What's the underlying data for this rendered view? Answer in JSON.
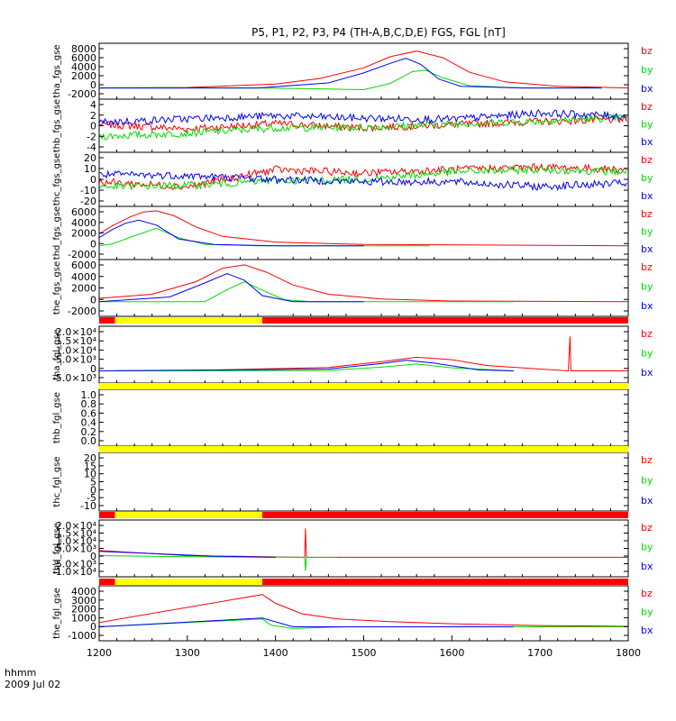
{
  "title": "P5, P1, P2, P3, P4 (TH-A,B,C,D,E) FGS, FGL [nT]",
  "x_axis": {
    "label_line1": "hhmm",
    "label_line2": "2009 Jul 02",
    "ticks": [
      "1200",
      "1300",
      "1400",
      "1500",
      "1600",
      "1700",
      "1800"
    ]
  },
  "colors": {
    "bz": "#ff0000",
    "by": "#00dd00",
    "bx": "#0000ff",
    "quality_good": "#ffff00",
    "quality_bad": "#ff0000"
  },
  "chart_data": [
    {
      "type": "line",
      "id": "tha_fgs_gse",
      "ylabel": "tha_fgs_gse",
      "yticks": [
        "8000",
        "6000",
        "4000",
        "2000",
        "0",
        "-2000"
      ],
      "ylim": [
        -2000,
        8000
      ],
      "legend": [
        "bz",
        "by",
        "bx"
      ],
      "series": [
        {
          "name": "bz",
          "x": [
            1200,
            1300,
            1400,
            1450,
            1500,
            1530,
            1560,
            1590,
            1620,
            1660,
            1720,
            1800
          ],
          "values": [
            0,
            80,
            700,
            1700,
            3600,
            5600,
            6600,
            5400,
            2800,
            1100,
            300,
            0
          ]
        },
        {
          "name": "by",
          "x": [
            1200,
            1380,
            1460,
            1500,
            1530,
            1555,
            1570,
            1590,
            1620,
            1680,
            1770
          ],
          "values": [
            0,
            0,
            -200,
            -300,
            800,
            2900,
            3200,
            1800,
            400,
            0,
            0
          ]
        },
        {
          "name": "bx",
          "x": [
            1200,
            1380,
            1460,
            1500,
            1530,
            1548,
            1565,
            1585,
            1610,
            1680,
            1770
          ],
          "values": [
            0,
            0,
            900,
            2700,
            4400,
            5300,
            4200,
            1600,
            300,
            0,
            0
          ]
        }
      ]
    },
    {
      "type": "line",
      "id": "thb_fgs_gse",
      "ylabel": "thb_fgs_gse",
      "yticks": [
        "4",
        "2",
        "0",
        "-2",
        "-4"
      ],
      "ylim": [
        -5,
        5
      ],
      "legend": [
        "bz",
        "by",
        "bx"
      ],
      "series": [
        {
          "name": "bz",
          "x": [
            1200,
            1300,
            1400,
            1500,
            1600,
            1700,
            1800
          ],
          "values": [
            0.3,
            -0.6,
            0.4,
            -0.4,
            0.2,
            0.8,
            1.2
          ]
        },
        {
          "name": "by",
          "x": [
            1200,
            1300,
            1400,
            1500,
            1600,
            1700,
            1800
          ],
          "values": [
            -2.0,
            -1.4,
            -0.4,
            -0.3,
            0.3,
            0.9,
            1.6
          ]
        },
        {
          "name": "bx",
          "x": [
            1200,
            1300,
            1400,
            1500,
            1600,
            1700,
            1800
          ],
          "values": [
            0.6,
            1.3,
            1.9,
            1.4,
            1.2,
            2.4,
            1.8
          ]
        }
      ]
    },
    {
      "type": "line",
      "id": "thc_fgs_gse",
      "ylabel": "thc_fgs_gse",
      "yticks": [
        "20",
        "10",
        "0",
        "-10",
        "-20"
      ],
      "ylim": [
        -22,
        22
      ],
      "legend": [
        "bz",
        "by",
        "bx"
      ],
      "series": [
        {
          "name": "bz",
          "x": [
            1200,
            1300,
            1400,
            1500,
            1600,
            1700,
            1800
          ],
          "values": [
            -2,
            -6,
            8,
            5,
            8,
            10,
            8
          ]
        },
        {
          "name": "by",
          "x": [
            1200,
            1300,
            1400,
            1500,
            1600,
            1700,
            1800
          ],
          "values": [
            -6,
            -5,
            -1,
            0,
            6,
            8,
            6
          ]
        },
        {
          "name": "bx",
          "x": [
            1200,
            1300,
            1400,
            1500,
            1600,
            1700,
            1800
          ],
          "values": [
            4,
            3,
            0,
            -2,
            -2,
            -6,
            -3
          ]
        }
      ]
    },
    {
      "type": "line",
      "id": "thd_fgs_gse",
      "ylabel": "thd_fgs_gse",
      "yticks": [
        "6000",
        "4000",
        "2000",
        "0",
        "-2000"
      ],
      "ylim": [
        -2200,
        6300
      ],
      "legend": [
        "bz",
        "by",
        "bx"
      ],
      "series": [
        {
          "name": "bz",
          "x": [
            1200,
            1215,
            1235,
            1250,
            1265,
            1285,
            1310,
            1340,
            1400,
            1500,
            1800
          ],
          "values": [
            1900,
            3200,
            4600,
            5400,
            5600,
            4800,
            3000,
            1500,
            600,
            200,
            0
          ]
        },
        {
          "name": "by",
          "x": [
            1200,
            1215,
            1240,
            1265,
            1290,
            1320,
            1380,
            1575
          ],
          "values": [
            0,
            300,
            1600,
            2800,
            1300,
            200,
            0,
            0
          ]
        },
        {
          "name": "bx",
          "x": [
            1200,
            1215,
            1230,
            1245,
            1265,
            1290,
            1330,
            1400,
            1500
          ],
          "values": [
            1300,
            2600,
            3600,
            4100,
            3300,
            1100,
            200,
            0,
            0
          ]
        }
      ]
    },
    {
      "type": "line",
      "id": "the_fgs_gse",
      "ylabel": "the_fgs_gse",
      "yticks": [
        "6000",
        "4000",
        "2000",
        "0",
        "-2000"
      ],
      "ylim": [
        -2200,
        6300
      ],
      "legend": [
        "bz",
        "by",
        "bx"
      ],
      "series": [
        {
          "name": "bz",
          "x": [
            1200,
            1260,
            1310,
            1340,
            1365,
            1390,
            1420,
            1460,
            1520,
            1600,
            1800
          ],
          "values": [
            500,
            1100,
            3000,
            5000,
            5500,
            4400,
            2500,
            1100,
            400,
            100,
            0
          ]
        },
        {
          "name": "by",
          "x": [
            1200,
            1320,
            1345,
            1365,
            1385,
            1410,
            1440,
            1500,
            1670
          ],
          "values": [
            0,
            0,
            1800,
            3000,
            1700,
            300,
            0,
            0,
            0
          ]
        },
        {
          "name": "bx",
          "x": [
            1200,
            1280,
            1320,
            1345,
            1365,
            1385,
            1420,
            1500
          ],
          "values": [
            0,
            700,
            2800,
            4200,
            3200,
            900,
            0,
            0
          ]
        }
      ]
    },
    {
      "type": "line",
      "id": "tha_fgl_gse",
      "ylabel": "tha_fgl_gse",
      "yticks": [
        "2.0×10⁴",
        "1.5×10⁴",
        "1.0×10⁴",
        "5.0×10³",
        "0",
        "-5.0×10³"
      ],
      "ylim": [
        -6000,
        22000
      ],
      "legend": [
        "bz",
        "by",
        "bx"
      ],
      "series": [
        {
          "name": "bz",
          "x": [
            1200,
            1300,
            1460,
            1520,
            1560,
            1600,
            1640,
            1732,
            1734,
            1735,
            1800
          ],
          "values": [
            0,
            200,
            1700,
            4500,
            6700,
            5500,
            2600,
            0,
            17000,
            0,
            0
          ]
        },
        {
          "name": "by",
          "x": [
            1200,
            1300,
            1460,
            1520,
            1560,
            1600,
            1670
          ],
          "values": [
            0,
            0,
            200,
            1800,
            3400,
            1500,
            0
          ]
        },
        {
          "name": "bx",
          "x": [
            1200,
            1460,
            1520,
            1548,
            1580,
            1630,
            1670
          ],
          "values": [
            0,
            900,
            3600,
            5200,
            3800,
            500,
            0
          ]
        }
      ]
    },
    {
      "type": "line",
      "id": "thb_fgl_gse",
      "ylabel": "thb_fgl_gse",
      "yticks": [
        "1.0",
        "0.8",
        "0.6",
        "0.4",
        "0.2",
        "0.0"
      ],
      "ylim": [
        -0.1,
        1.1
      ],
      "legend": [],
      "series": []
    },
    {
      "type": "line",
      "id": "thc_fgl_gse",
      "ylabel": "thc_fgl_gse",
      "yticks": [
        "20",
        "15",
        "10",
        "5",
        "0",
        "-5",
        "-10"
      ],
      "ylim": [
        -13,
        22
      ],
      "legend": [
        "bz",
        "by",
        "bx"
      ],
      "series": []
    },
    {
      "type": "line",
      "id": "thd_fgl_gse",
      "ylabel": "thd_fgl_gse",
      "yticks": [
        "2.0×10⁴",
        "1.5×10⁴",
        "1.0×10⁴",
        "5.0×10³",
        "0",
        "-5.0×10³",
        "-1.0×10⁴"
      ],
      "ylim": [
        -11500,
        22000
      ],
      "legend": [
        "bz",
        "by",
        "bx"
      ],
      "series": [
        {
          "name": "bz",
          "x": [
            1200,
            1300,
            1433,
            1434,
            1435,
            1800
          ],
          "values": [
            4000,
            1000,
            0,
            17000,
            0,
            0
          ]
        },
        {
          "name": "by",
          "x": [
            1200,
            1300,
            1433,
            1434,
            1435,
            1470
          ],
          "values": [
            1000,
            300,
            0,
            -8000,
            0,
            0
          ]
        },
        {
          "name": "bx",
          "x": [
            1200,
            1250,
            1330,
            1400
          ],
          "values": [
            3500,
            2500,
            700,
            0
          ]
        }
      ]
    },
    {
      "type": "line",
      "id": "the_fgl_gse",
      "ylabel": "the_fgl_gse",
      "yticks": [
        "4000",
        "3000",
        "2000",
        "1000",
        "0",
        "-1000"
      ],
      "ylim": [
        -1600,
        4700
      ],
      "legend": [
        "bz",
        "by",
        "bx"
      ],
      "series": [
        {
          "name": "bz",
          "x": [
            1200,
            1385,
            1400,
            1430,
            1470,
            1530,
            1600,
            1700,
            1800
          ],
          "values": [
            500,
            3700,
            2700,
            1500,
            900,
            600,
            350,
            150,
            50
          ]
        },
        {
          "name": "by",
          "x": [
            1200,
            1385,
            1395,
            1420,
            1480,
            1600,
            1800
          ],
          "values": [
            0,
            900,
            200,
            -200,
            0,
            0,
            0
          ]
        },
        {
          "name": "bx",
          "x": [
            1200,
            1385,
            1420,
            1500,
            1670
          ],
          "values": [
            0,
            1000,
            0,
            0,
            0
          ]
        }
      ]
    }
  ],
  "quality_bars": [
    {
      "after": "the_fgs_gse",
      "segments": [
        {
          "from": 1200,
          "to": 1218,
          "flag": "quality_bad"
        },
        {
          "from": 1218,
          "to": 1385,
          "flag": "quality_good"
        },
        {
          "from": 1385,
          "to": 1800,
          "flag": "quality_bad"
        }
      ]
    },
    {
      "after": "tha_fgl_gse",
      "segments": [
        {
          "from": 1200,
          "to": 1800,
          "flag": "quality_good"
        }
      ]
    },
    {
      "after": "thb_fgl_gse",
      "segments": [
        {
          "from": 1200,
          "to": 1800,
          "flag": "quality_good"
        }
      ]
    },
    {
      "after": "thc_fgl_gse",
      "segments": [
        {
          "from": 1200,
          "to": 1218,
          "flag": "quality_bad"
        },
        {
          "from": 1218,
          "to": 1385,
          "flag": "quality_good"
        },
        {
          "from": 1385,
          "to": 1800,
          "flag": "quality_bad"
        }
      ]
    },
    {
      "after": "thd_fgl_gse",
      "segments": [
        {
          "from": 1200,
          "to": 1218,
          "flag": "quality_bad"
        },
        {
          "from": 1218,
          "to": 1385,
          "flag": "quality_good"
        },
        {
          "from": 1385,
          "to": 1800,
          "flag": "quality_bad"
        }
      ]
    }
  ]
}
